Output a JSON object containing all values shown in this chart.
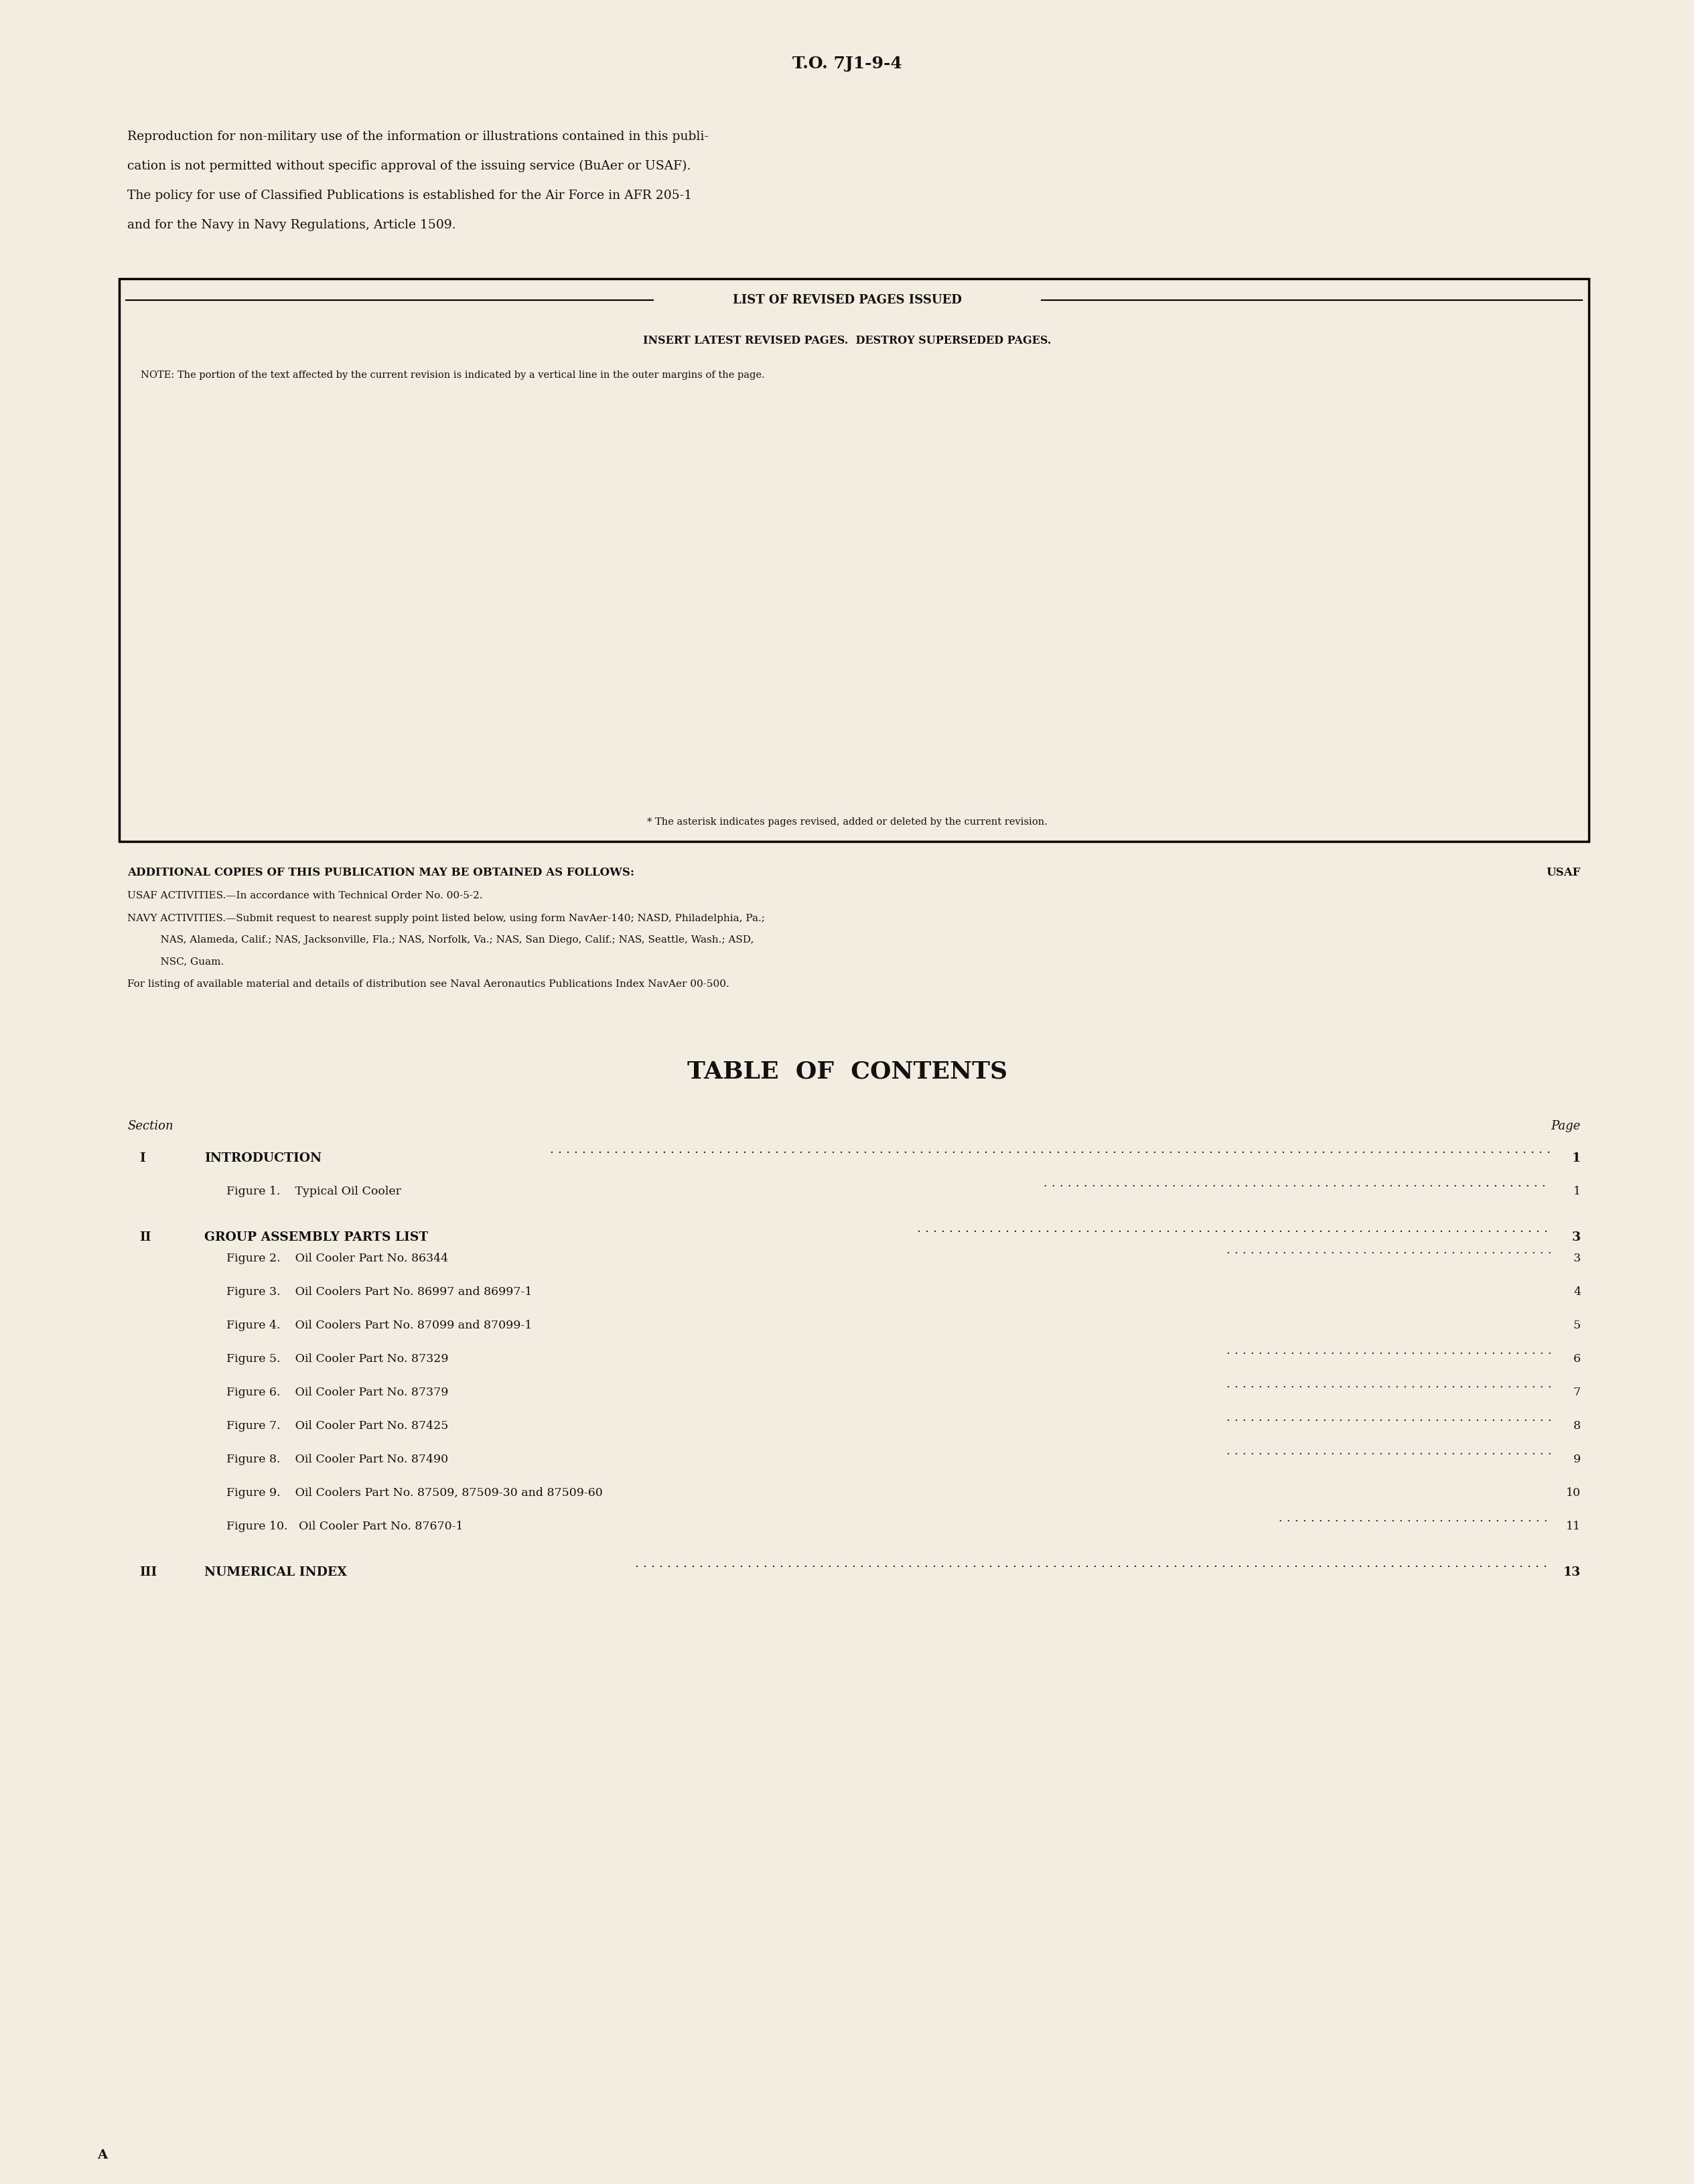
{
  "bg_color": "#f2ede0",
  "text_color": "#111111",
  "page_header": "T.O. 7J1-9-4",
  "repro_lines": [
    "Reproduction for non-military use of the information or illustrations contained in this publi-",
    "cation is not permitted without specific approval of the issuing service (BuAer or USAF).",
    "The policy for use of Classified Publications is established for the Air Force in AFR 205-1",
    "and for the Navy in Navy Regulations, Article 1509."
  ],
  "box_title": "LIST OF REVISED PAGES ISSUED",
  "box_line1": "INSERT LATEST REVISED PAGES.  DESTROY SUPERSEDED PAGES.",
  "box_note": "NOTE: The portion of the text affected by the current revision is indicated by a vertical line in the outer margins of the page.",
  "asterisk_note": "* The asterisk indicates pages revised, added or deleted by the current revision.",
  "additional_copies_bold": "ADDITIONAL COPIES OF THIS PUBLICATION MAY BE OBTAINED AS FOLLOWS:",
  "usaf_label": "USAF",
  "usaf_activities": "USAF ACTIVITIES.—In accordance with Technical Order No. 00-5-2.",
  "navy_line1": "NAVY ACTIVITIES.—Submit request to nearest supply point listed below, using form NavAer-140; NASD, Philadelphia, Pa.;",
  "navy_line2": "    NAS, Alameda, Calif.; NAS, Jacksonville, Fla.; NAS, Norfolk, Va.; NAS, San Diego, Calif.; NAS, Seattle, Wash.; ASD,",
  "navy_line3": "    NSC, Guam.",
  "listing_note": "For listing of available material and details of distribution see Naval Aeronautics Publications Index NavAer 00-500.",
  "toc_title": "TABLE  OF  CONTENTS",
  "section_label": "Section",
  "page_label": "Page",
  "toc_entries": [
    {
      "section": "I",
      "title": "INTRODUCTION",
      "page": "1",
      "bold": true
    },
    {
      "section": "",
      "title": "Figure 1.    Typical Oil Cooler",
      "page": "1",
      "bold": false
    },
    {
      "section": "II",
      "title": "GROUP ASSEMBLY PARTS LIST",
      "page": "3",
      "bold": true
    },
    {
      "section": "",
      "title": "Figure 2.    Oil Cooler Part No. 86344",
      "page": "3",
      "bold": false
    },
    {
      "section": "",
      "title": "Figure 3.    Oil Coolers Part No. 86997 and 86997-1",
      "page": "4",
      "bold": false
    },
    {
      "section": "",
      "title": "Figure 4.    Oil Coolers Part No. 87099 and 87099-1",
      "page": "5",
      "bold": false
    },
    {
      "section": "",
      "title": "Figure 5.    Oil Cooler Part No. 87329",
      "page": "6",
      "bold": false
    },
    {
      "section": "",
      "title": "Figure 6.    Oil Cooler Part No. 87379",
      "page": "7",
      "bold": false
    },
    {
      "section": "",
      "title": "Figure 7.    Oil Cooler Part No. 87425",
      "page": "8",
      "bold": false
    },
    {
      "section": "",
      "title": "Figure 8.    Oil Cooler Part No. 87490",
      "page": "9",
      "bold": false
    },
    {
      "section": "",
      "title": "Figure 9.    Oil Coolers Part No. 87509, 87509-30 and 87509-60",
      "page": "10",
      "bold": false
    },
    {
      "section": "",
      "title": "Figure 10.   Oil Cooler Part No. 87670-1",
      "page": "11",
      "bold": false
    },
    {
      "section": "III",
      "title": "NUMERICAL INDEX",
      "page": "13",
      "bold": true
    }
  ],
  "bottom_label": "A"
}
